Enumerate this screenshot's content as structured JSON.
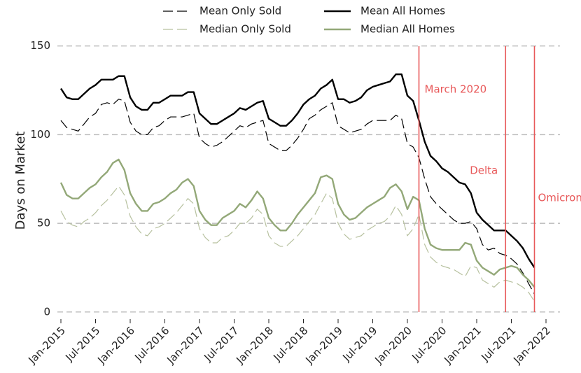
{
  "chart_data": {
    "type": "line",
    "ylabel": "Days on Market",
    "x": [
      "2015-01",
      "2015-02",
      "2015-03",
      "2015-04",
      "2015-05",
      "2015-06",
      "2015-07",
      "2015-08",
      "2015-09",
      "2015-10",
      "2015-11",
      "2015-12",
      "2016-01",
      "2016-02",
      "2016-03",
      "2016-04",
      "2016-05",
      "2016-06",
      "2016-07",
      "2016-08",
      "2016-09",
      "2016-10",
      "2016-11",
      "2016-12",
      "2017-01",
      "2017-02",
      "2017-03",
      "2017-04",
      "2017-05",
      "2017-06",
      "2017-07",
      "2017-08",
      "2017-09",
      "2017-10",
      "2017-11",
      "2017-12",
      "2018-01",
      "2018-02",
      "2018-03",
      "2018-04",
      "2018-05",
      "2018-06",
      "2018-07",
      "2018-08",
      "2018-09",
      "2018-10",
      "2018-11",
      "2018-12",
      "2019-01",
      "2019-02",
      "2019-03",
      "2019-04",
      "2019-05",
      "2019-06",
      "2019-07",
      "2019-08",
      "2019-09",
      "2019-10",
      "2019-11",
      "2019-12",
      "2020-01",
      "2020-02",
      "2020-03",
      "2020-04",
      "2020-05",
      "2020-06",
      "2020-07",
      "2020-08",
      "2020-09",
      "2020-10",
      "2020-11",
      "2020-12",
      "2021-01",
      "2021-02",
      "2021-03",
      "2021-04",
      "2021-05",
      "2021-06",
      "2021-07",
      "2021-08",
      "2021-09",
      "2021-10",
      "2021-11"
    ],
    "series": [
      {
        "name": "Mean Only Sold",
        "color": "#000000",
        "linestyle": "dashed",
        "linewidth": 1.2,
        "values": [
          108,
          104,
          103,
          102,
          106,
          110,
          112,
          117,
          118,
          117,
          120,
          119,
          107,
          102,
          100,
          100,
          104,
          105,
          108,
          110,
          110,
          110,
          111,
          112,
          98,
          95,
          93,
          94,
          96,
          99,
          102,
          105,
          104,
          106,
          107,
          108,
          95,
          93,
          91,
          91,
          94,
          98,
          103,
          109,
          111,
          114,
          116,
          118,
          105,
          103,
          101,
          102,
          103,
          106,
          108,
          108,
          108,
          108,
          111,
          109,
          95,
          93,
          87,
          75,
          65,
          61,
          58,
          55,
          52,
          50,
          50,
          51,
          47,
          38,
          35,
          36,
          33,
          32,
          30,
          27,
          22,
          16,
          10
        ]
      },
      {
        "name": "Mean All Homes",
        "color": "#000000",
        "linestyle": "solid",
        "linewidth": 2.4,
        "values": [
          126,
          121,
          120,
          120,
          123,
          126,
          128,
          131,
          131,
          131,
          133,
          133,
          121,
          116,
          114,
          114,
          118,
          118,
          120,
          122,
          122,
          122,
          124,
          124,
          112,
          109,
          106,
          106,
          108,
          110,
          112,
          115,
          114,
          116,
          118,
          119,
          109,
          107,
          105,
          105,
          108,
          112,
          117,
          120,
          122,
          126,
          128,
          131,
          120,
          120,
          118,
          119,
          121,
          125,
          127,
          128,
          129,
          130,
          134,
          134,
          122,
          119,
          108,
          96,
          88,
          85,
          81,
          79,
          76,
          73,
          72,
          67,
          56,
          52,
          49,
          46,
          46,
          46,
          43,
          40,
          36,
          30,
          25
        ]
      },
      {
        "name": "Median Only Sold",
        "color": "#b7c19f",
        "linestyle": "dashed",
        "linewidth": 1.2,
        "values": [
          57,
          51,
          49,
          48,
          51,
          53,
          56,
          60,
          63,
          67,
          71,
          66,
          54,
          48,
          44,
          43,
          47,
          48,
          50,
          53,
          56,
          60,
          64,
          61,
          47,
          42,
          39,
          39,
          42,
          43,
          46,
          50,
          50,
          53,
          58,
          55,
          43,
          39,
          37,
          37,
          40,
          43,
          47,
          51,
          55,
          61,
          67,
          64,
          50,
          44,
          41,
          42,
          43,
          46,
          48,
          50,
          51,
          54,
          60,
          55,
          43,
          47,
          55,
          38,
          31,
          28,
          26,
          25,
          24,
          22,
          20,
          26,
          25,
          18,
          16,
          14,
          17,
          18,
          17,
          16,
          14,
          11,
          6
        ]
      },
      {
        "name": "Median All Homes",
        "color": "#93a878",
        "linestyle": "solid",
        "linewidth": 2.4,
        "values": [
          73,
          66,
          64,
          64,
          67,
          70,
          72,
          76,
          79,
          84,
          86,
          80,
          67,
          61,
          57,
          57,
          61,
          62,
          64,
          67,
          69,
          73,
          75,
          71,
          57,
          52,
          49,
          49,
          53,
          55,
          57,
          61,
          59,
          63,
          68,
          64,
          53,
          49,
          46,
          46,
          50,
          55,
          59,
          63,
          67,
          76,
          77,
          75,
          61,
          55,
          52,
          53,
          56,
          59,
          61,
          63,
          65,
          70,
          72,
          68,
          58,
          65,
          63,
          47,
          38,
          36,
          35,
          35,
          35,
          35,
          39,
          38,
          29,
          25,
          23,
          21,
          24,
          25,
          26,
          25,
          21,
          18,
          14
        ]
      }
    ],
    "xlim": [
      "2015-01",
      "2022-01"
    ],
    "xticks": [
      {
        "value": "2015-01",
        "label": "Jan-2015"
      },
      {
        "value": "2015-07",
        "label": "Jul-2015"
      },
      {
        "value": "2016-01",
        "label": "Jan-2016"
      },
      {
        "value": "2016-07",
        "label": "Jul-2016"
      },
      {
        "value": "2017-01",
        "label": "Jan-2017"
      },
      {
        "value": "2017-07",
        "label": "Jul-2017"
      },
      {
        "value": "2018-01",
        "label": "Jan-2018"
      },
      {
        "value": "2018-07",
        "label": "Jul-2018"
      },
      {
        "value": "2019-01",
        "label": "Jan-2019"
      },
      {
        "value": "2019-07",
        "label": "Jul-2019"
      },
      {
        "value": "2020-01",
        "label": "Jan-2020"
      },
      {
        "value": "2020-07",
        "label": "Jul-2020"
      },
      {
        "value": "2021-01",
        "label": "Jan-2021"
      },
      {
        "value": "2021-07",
        "label": "Jul-2021"
      },
      {
        "value": "2022-01",
        "label": "Jan-2022"
      }
    ],
    "ylim": [
      -4,
      155
    ],
    "yticks": [
      0,
      50,
      100,
      150
    ],
    "grid": true,
    "legend": "top",
    "annotations": [
      {
        "x": "2020-03",
        "label": "March 2020",
        "color": "#e8595a"
      },
      {
        "x": "2021-06",
        "label": "Delta",
        "color": "#e8595a"
      },
      {
        "x": "2021-11",
        "label": "Omicron",
        "color": "#e8595a"
      }
    ]
  }
}
